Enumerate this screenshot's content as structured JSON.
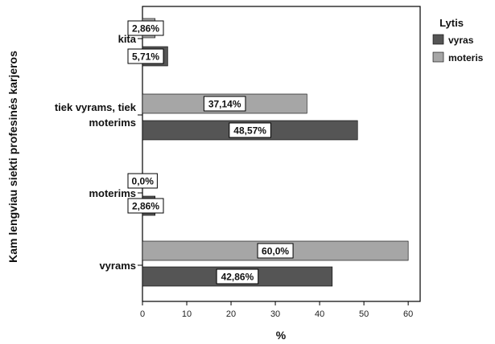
{
  "chart_data": {
    "type": "bar",
    "orientation": "horizontal",
    "categories": [
      "kita",
      "tiek vyrams, tiek moterims",
      "moterims",
      "vyrams"
    ],
    "series": [
      {
        "name": "moteris",
        "values": [
          2.86,
          37.14,
          0.0,
          60.0
        ],
        "labels": [
          "2,86%",
          "37,14%",
          "0,0%",
          "60,0%"
        ],
        "color": "#a6a6a6"
      },
      {
        "name": "vyras",
        "values": [
          5.71,
          48.57,
          2.86,
          42.86
        ],
        "labels": [
          "5,71%",
          "48,57%",
          "2,86%",
          "42,86%"
        ],
        "color": "#555555"
      }
    ],
    "xlabel": "%",
    "ylabel": "Kam lengviau siekti profesinės karjeros",
    "xlim": [
      0,
      62.7
    ],
    "xticks": [
      "0",
      "10",
      "20",
      "30",
      "40",
      "50",
      "60"
    ],
    "legend": {
      "title": "Lytis",
      "position": "top-right",
      "entries": [
        {
          "label": "vyras",
          "color": "#555555"
        },
        {
          "label": "moteris",
          "color": "#a6a6a6"
        }
      ]
    },
    "grid": false
  }
}
